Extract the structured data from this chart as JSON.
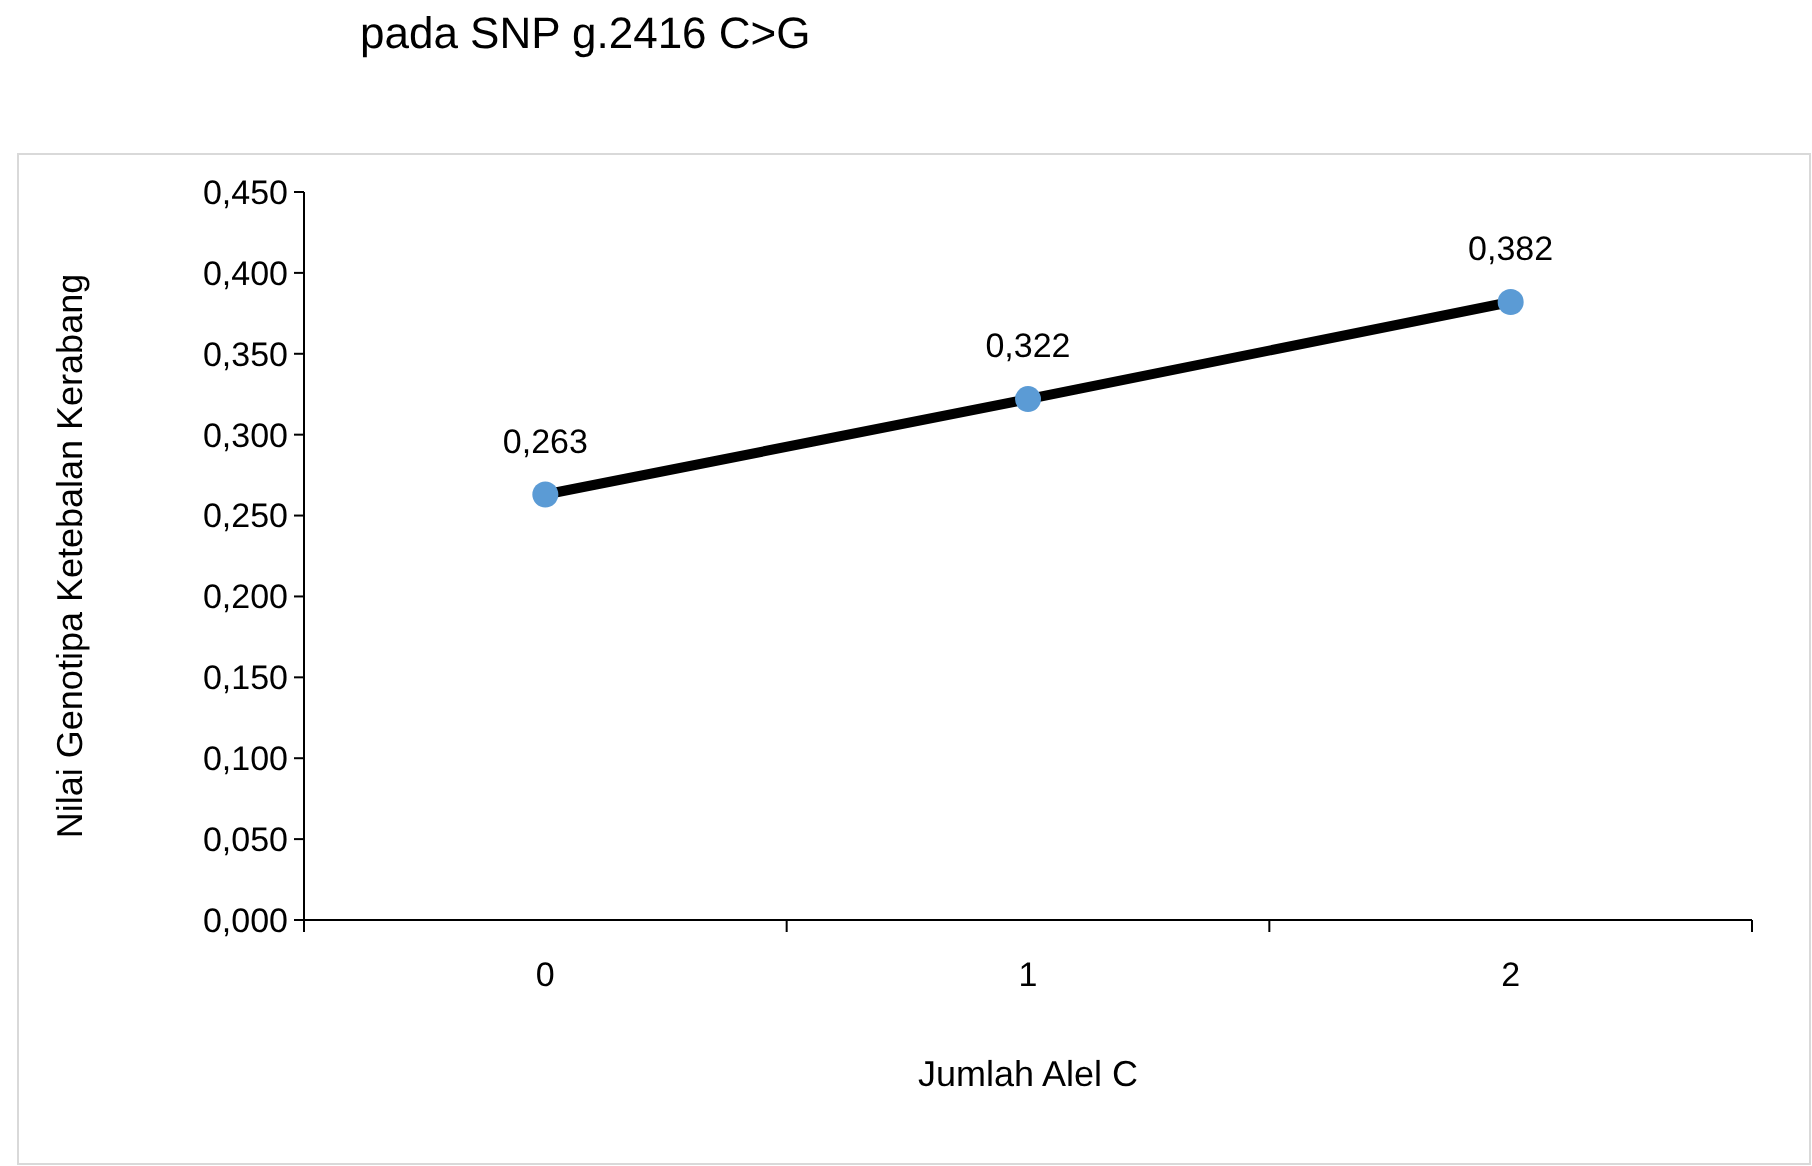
{
  "chart_data": {
    "type": "line",
    "annotations": [
      "pada SNP g.2416 C>G"
    ],
    "xlabel": "Jumlah Alel C",
    "ylabel": "Nilai Genotipa Ketebalan Kerabang",
    "categories": [
      "0",
      "1",
      "2"
    ],
    "series": [
      {
        "color": "#000000",
        "colors": [
          "#5b9bd5",
          "#5b9bd5",
          "#5b9bd5"
        ],
        "values": [
          0.263,
          0.322,
          0.382
        ],
        "value_labels": [
          "0,263",
          "0,322",
          "0,382"
        ]
      }
    ],
    "ylim": [
      0,
      0.45
    ],
    "yticks": [
      {
        "value": 0,
        "label": "0,000"
      },
      {
        "value": 0.05,
        "label": "0,050"
      },
      {
        "value": 0.1,
        "label": "0,100"
      },
      {
        "value": 0.15,
        "label": "0,150"
      },
      {
        "value": 0.2,
        "label": "0,200"
      },
      {
        "value": 0.25,
        "label": "0,250"
      },
      {
        "value": 0.3,
        "label": "0,300"
      },
      {
        "value": 0.35,
        "label": "0,350"
      },
      {
        "value": 0.4,
        "label": "0,400"
      },
      {
        "value": 0.45,
        "label": "0,450"
      }
    ],
    "marker": "circle",
    "line_style": "solid"
  }
}
